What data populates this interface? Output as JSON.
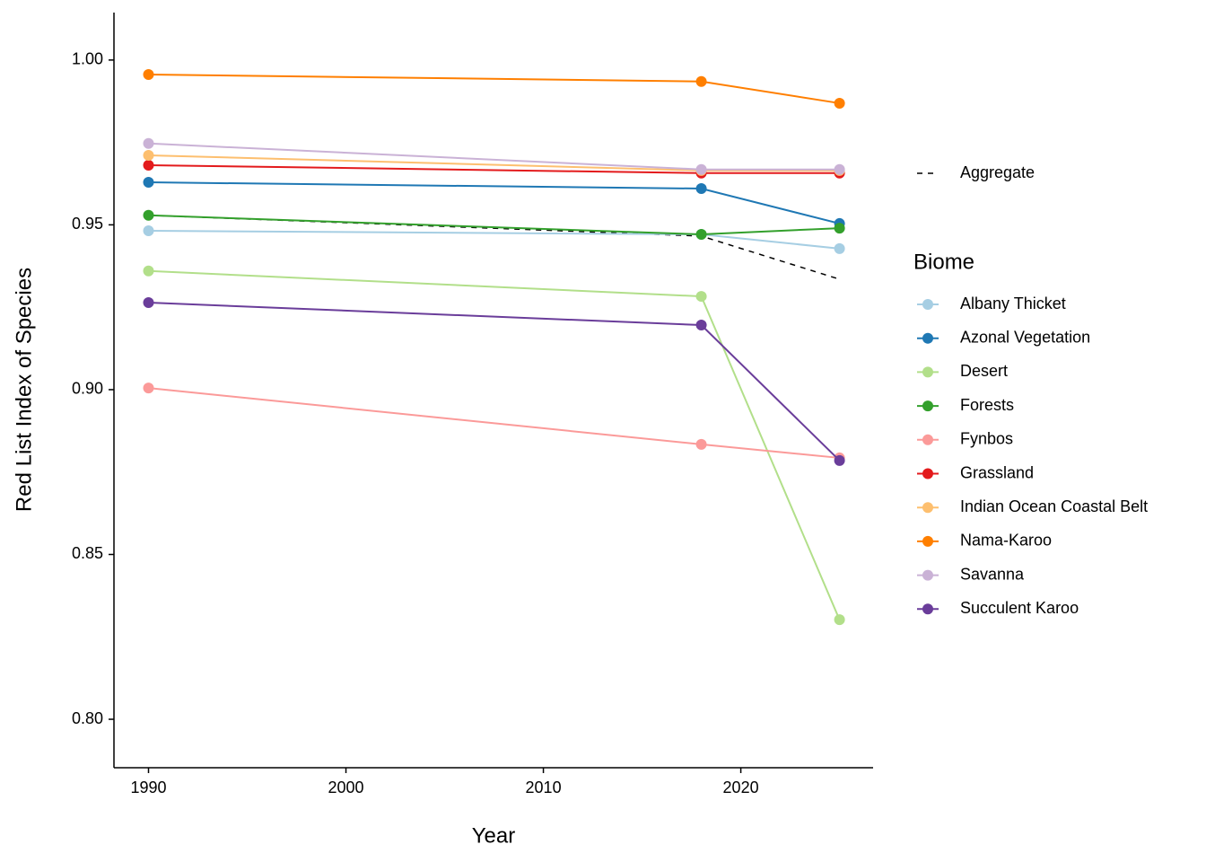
{
  "chart_data": {
    "type": "line",
    "x_label": "Year",
    "y_label": "Red List Index of Species",
    "legend_title": "Biome",
    "x": [
      1990,
      2018,
      2025
    ],
    "xlim": [
      1988.25,
      2026.7
    ],
    "xticks": [
      1990,
      2000,
      2010,
      2020
    ],
    "ylim": [
      0.7853,
      1.0144
    ],
    "yticks": [
      {
        "value": 0.8,
        "label": "0.80"
      },
      0.85,
      {
        "value": 0.9,
        "label": "0.90"
      },
      0.95,
      {
        "value": 1.0,
        "label": "1.00"
      }
    ],
    "grid": false,
    "series": [
      {
        "name": "Aggregate",
        "color": "#000000",
        "linetype": "dashed",
        "values": [
          0.9529,
          0.9466,
          0.9335
        ]
      },
      {
        "name": "Albany Thicket",
        "color": "#a6cee3",
        "values": [
          0.9482,
          0.9471,
          0.9428
        ]
      },
      {
        "name": "Azonal Vegetation",
        "color": "#1f78b4",
        "values": [
          0.9629,
          0.961,
          0.9504
        ]
      },
      {
        "name": "Desert",
        "color": "#b2df8a",
        "values": [
          0.936,
          0.9283,
          0.8302
        ]
      },
      {
        "name": "Forests",
        "color": "#33a02c",
        "values": [
          0.9529,
          0.9471,
          0.949
        ]
      },
      {
        "name": "Fynbos",
        "color": "#fb9a99",
        "values": [
          0.9005,
          0.8834,
          0.8793
        ]
      },
      {
        "name": "Grassland",
        "color": "#e31a1c",
        "values": [
          0.9681,
          0.9657,
          0.9657
        ]
      },
      {
        "name": "Indian Ocean Coastal Belt",
        "color": "#fdbf6f",
        "values": [
          0.9711,
          0.9665,
          0.9665
        ]
      },
      {
        "name": "Nama-Karoo",
        "color": "#ff7f00",
        "values": [
          0.9956,
          0.9935,
          0.9869
        ]
      },
      {
        "name": "Savanna",
        "color": "#cab2d6",
        "values": [
          0.9747,
          0.9668,
          0.9668
        ]
      },
      {
        "name": "Succulent Karoo",
        "color": "#6a3d9a",
        "values": [
          0.9264,
          0.9196,
          0.8785
        ]
      }
    ]
  }
}
